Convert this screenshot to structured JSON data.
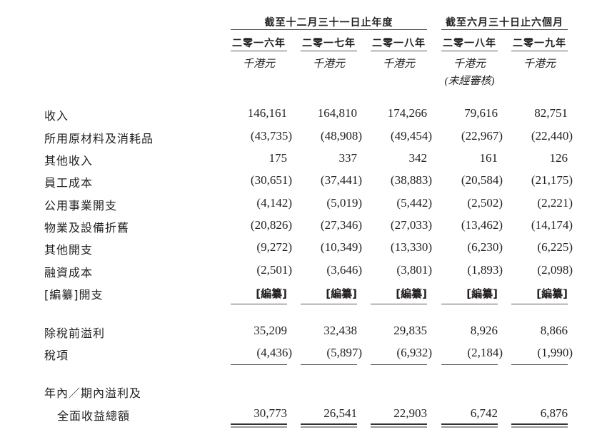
{
  "header": {
    "group_year": "截至十二月三十一日止年度",
    "group_sixmonth": "截至六月三十日止六個月",
    "years": [
      "二零一六年",
      "二零一七年",
      "二零一八年",
      "二零一八年",
      "二零一九年"
    ],
    "units": [
      "千港元",
      "千港元",
      "千港元",
      "千港元",
      "千港元"
    ],
    "unaudited_note": "(未經審核)"
  },
  "rows": [
    {
      "label": "收入",
      "values": [
        "146,161",
        "164,810",
        "174,266",
        "79,616",
        "82,751"
      ]
    },
    {
      "label": "所用原材料及消耗品",
      "values": [
        "(43,735)",
        "(48,908)",
        "(49,454)",
        "(22,967)",
        "(22,440)"
      ]
    },
    {
      "label": "其他收入",
      "values": [
        "175",
        "337",
        "342",
        "161",
        "126"
      ]
    },
    {
      "label": "員工成本",
      "values": [
        "(30,651)",
        "(37,441)",
        "(38,883)",
        "(20,584)",
        "(21,175)"
      ]
    },
    {
      "label": "公用事業開支",
      "values": [
        "(4,142)",
        "(5,019)",
        "(5,442)",
        "(2,502)",
        "(2,221)"
      ]
    },
    {
      "label": "物業及設備折舊",
      "values": [
        "(20,826)",
        "(27,346)",
        "(27,033)",
        "(13,462)",
        "(14,174)"
      ]
    },
    {
      "label": "其他開支",
      "values": [
        "(9,272)",
        "(10,349)",
        "(13,330)",
        "(6,230)",
        "(6,225)"
      ]
    },
    {
      "label": "融資成本",
      "values": [
        "(2,501)",
        "(3,646)",
        "(3,801)",
        "(1,893)",
        "(2,098)"
      ]
    },
    {
      "label": "[編纂]開支",
      "values": [
        "[編纂]",
        "[編纂]",
        "[編纂]",
        "[編纂]",
        "[編纂]"
      ]
    },
    {
      "label": "除稅前溢利",
      "values": [
        "35,209",
        "32,438",
        "29,835",
        "8,926",
        "8,866"
      ]
    },
    {
      "label": "稅項",
      "values": [
        "(4,436)",
        "(5,897)",
        "(6,932)",
        "(2,184)",
        "(1,990)"
      ]
    },
    {
      "label": "年內／期內溢利及",
      "values": []
    },
    {
      "label": "全面收益總額",
      "values": [
        "30,773",
        "26,541",
        "22,903",
        "6,742",
        "6,876"
      ]
    }
  ]
}
